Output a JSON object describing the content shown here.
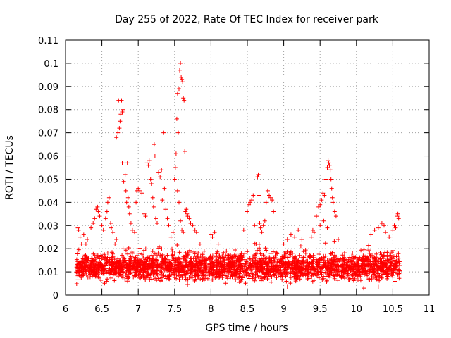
{
  "chart_data": {
    "type": "scatter",
    "title": "Day 255 of 2022, Rate Of TEC Index for receiver park",
    "xlabel": "GPS time / hours",
    "ylabel": "ROTI / TECUs",
    "xlim": [
      6,
      11
    ],
    "ylim": [
      0,
      0.11
    ],
    "x_ticks": [
      "6",
      "6.5",
      "7",
      "7.5",
      "8",
      "8.5",
      "9",
      "9.5",
      "10",
      "10.5",
      "11"
    ],
    "y_ticks": [
      "0",
      "0.01",
      "0.02",
      "0.03",
      "0.04",
      "0.05",
      "0.06",
      "0.07",
      "0.08",
      "0.09",
      "0.1",
      "0.11"
    ],
    "x_tick_values": [
      6,
      6.5,
      7,
      7.5,
      8,
      8.5,
      9,
      9.5,
      10,
      10.5,
      11
    ],
    "y_tick_values": [
      0,
      0.01,
      0.02,
      0.03,
      0.04,
      0.05,
      0.06,
      0.07,
      0.08,
      0.09,
      0.1,
      0.11
    ],
    "grid": true,
    "marker": "+",
    "marker_color": "#ff0000",
    "series": [
      {
        "name": "ROTI",
        "baseline_time_range": [
          6.15,
          10.6
        ],
        "baseline_value_range": [
          0.004,
          0.02
        ],
        "points": [
          [
            6.17,
            0.029
          ],
          [
            6.18,
            0.028
          ],
          [
            6.2,
            0.025
          ],
          [
            6.22,
            0.022
          ],
          [
            6.25,
            0.026
          ],
          [
            6.28,
            0.022
          ],
          [
            6.3,
            0.024
          ],
          [
            6.35,
            0.029
          ],
          [
            6.38,
            0.031
          ],
          [
            6.4,
            0.033
          ],
          [
            6.42,
            0.037
          ],
          [
            6.44,
            0.038
          ],
          [
            6.45,
            0.036
          ],
          [
            6.47,
            0.034
          ],
          [
            6.5,
            0.03
          ],
          [
            6.52,
            0.028
          ],
          [
            6.55,
            0.033
          ],
          [
            6.57,
            0.036
          ],
          [
            6.58,
            0.04
          ],
          [
            6.6,
            0.042
          ],
          [
            6.62,
            0.031
          ],
          [
            6.63,
            0.029
          ],
          [
            6.65,
            0.027
          ],
          [
            6.68,
            0.022
          ],
          [
            6.7,
            0.024
          ],
          [
            6.7,
            0.068
          ],
          [
            6.72,
            0.07
          ],
          [
            6.73,
            0.084
          ],
          [
            6.74,
            0.072
          ],
          [
            6.75,
            0.075
          ],
          [
            6.76,
            0.078
          ],
          [
            6.77,
            0.084
          ],
          [
            6.78,
            0.079
          ],
          [
            6.79,
            0.08
          ],
          [
            6.78,
            0.057
          ],
          [
            6.8,
            0.049
          ],
          [
            6.82,
            0.052
          ],
          [
            6.83,
            0.045
          ],
          [
            6.84,
            0.04
          ],
          [
            6.85,
            0.057
          ],
          [
            6.86,
            0.042
          ],
          [
            6.87,
            0.038
          ],
          [
            6.88,
            0.035
          ],
          [
            6.9,
            0.031
          ],
          [
            6.92,
            0.028
          ],
          [
            6.95,
            0.027
          ],
          [
            6.97,
            0.04
          ],
          [
            6.98,
            0.045
          ],
          [
            7.0,
            0.046
          ],
          [
            7.02,
            0.045
          ],
          [
            7.05,
            0.044
          ],
          [
            7.08,
            0.035
          ],
          [
            7.1,
            0.034
          ],
          [
            7.12,
            0.057
          ],
          [
            7.14,
            0.056
          ],
          [
            7.15,
            0.058
          ],
          [
            7.17,
            0.05
          ],
          [
            7.18,
            0.048
          ],
          [
            7.2,
            0.042
          ],
          [
            7.21,
            0.038
          ],
          [
            7.22,
            0.065
          ],
          [
            7.23,
            0.06
          ],
          [
            7.24,
            0.033
          ],
          [
            7.26,
            0.031
          ],
          [
            7.28,
            0.053
          ],
          [
            7.3,
            0.051
          ],
          [
            7.32,
            0.054
          ],
          [
            7.33,
            0.041
          ],
          [
            7.35,
            0.07
          ],
          [
            7.36,
            0.046
          ],
          [
            7.38,
            0.037
          ],
          [
            7.4,
            0.033
          ],
          [
            7.42,
            0.03
          ],
          [
            7.45,
            0.025
          ],
          [
            7.48,
            0.027
          ],
          [
            7.5,
            0.05
          ],
          [
            7.51,
            0.055
          ],
          [
            7.52,
            0.061
          ],
          [
            7.53,
            0.076
          ],
          [
            7.54,
            0.087
          ],
          [
            7.55,
            0.07
          ],
          [
            7.56,
            0.089
          ],
          [
            7.57,
            0.097
          ],
          [
            7.58,
            0.1
          ],
          [
            7.59,
            0.094
          ],
          [
            7.6,
            0.093
          ],
          [
            7.61,
            0.092
          ],
          [
            7.62,
            0.085
          ],
          [
            7.63,
            0.084
          ],
          [
            7.54,
            0.045
          ],
          [
            7.56,
            0.04
          ],
          [
            7.58,
            0.032
          ],
          [
            7.6,
            0.028
          ],
          [
            7.62,
            0.027
          ],
          [
            7.64,
            0.062
          ],
          [
            7.65,
            0.036
          ],
          [
            7.66,
            0.037
          ],
          [
            7.67,
            0.035
          ],
          [
            7.68,
            0.034
          ],
          [
            7.7,
            0.033
          ],
          [
            7.72,
            0.031
          ],
          [
            7.75,
            0.03
          ],
          [
            7.78,
            0.028
          ],
          [
            7.8,
            0.027
          ],
          [
            7.85,
            0.022
          ],
          [
            8.0,
            0.026
          ],
          [
            8.02,
            0.025
          ],
          [
            8.05,
            0.027
          ],
          [
            8.1,
            0.022
          ],
          [
            8.45,
            0.028
          ],
          [
            8.5,
            0.036
          ],
          [
            8.52,
            0.039
          ],
          [
            8.54,
            0.04
          ],
          [
            8.56,
            0.041
          ],
          [
            8.58,
            0.043
          ],
          [
            8.6,
            0.03
          ],
          [
            8.62,
            0.022
          ],
          [
            8.64,
            0.051
          ],
          [
            8.65,
            0.052
          ],
          [
            8.66,
            0.043
          ],
          [
            8.67,
            0.031
          ],
          [
            8.68,
            0.029
          ],
          [
            8.7,
            0.027
          ],
          [
            8.72,
            0.03
          ],
          [
            8.74,
            0.032
          ],
          [
            8.76,
            0.04
          ],
          [
            8.78,
            0.045
          ],
          [
            8.8,
            0.043
          ],
          [
            8.82,
            0.042
          ],
          [
            8.84,
            0.041
          ],
          [
            8.86,
            0.036
          ],
          [
            9.0,
            0.022
          ],
          [
            9.05,
            0.024
          ],
          [
            9.1,
            0.026
          ],
          [
            9.15,
            0.025
          ],
          [
            9.2,
            0.028
          ],
          [
            9.25,
            0.024
          ],
          [
            9.38,
            0.025
          ],
          [
            9.4,
            0.028
          ],
          [
            9.42,
            0.027
          ],
          [
            9.45,
            0.034
          ],
          [
            9.48,
            0.038
          ],
          [
            9.5,
            0.039
          ],
          [
            9.52,
            0.041
          ],
          [
            9.54,
            0.044
          ],
          [
            9.56,
            0.043
          ],
          [
            9.58,
            0.05
          ],
          [
            9.6,
            0.055
          ],
          [
            9.61,
            0.058
          ],
          [
            9.62,
            0.057
          ],
          [
            9.63,
            0.056
          ],
          [
            9.64,
            0.054
          ],
          [
            9.65,
            0.05
          ],
          [
            9.66,
            0.046
          ],
          [
            9.67,
            0.042
          ],
          [
            9.68,
            0.04
          ],
          [
            9.7,
            0.036
          ],
          [
            9.72,
            0.034
          ],
          [
            9.5,
            0.03
          ],
          [
            9.55,
            0.032
          ],
          [
            9.6,
            0.029
          ],
          [
            9.75,
            0.024
          ],
          [
            10.2,
            0.026
          ],
          [
            10.25,
            0.028
          ],
          [
            10.3,
            0.029
          ],
          [
            10.35,
            0.031
          ],
          [
            10.38,
            0.03
          ],
          [
            10.4,
            0.027
          ],
          [
            10.45,
            0.025
          ],
          [
            10.5,
            0.028
          ],
          [
            10.52,
            0.03
          ],
          [
            10.54,
            0.029
          ],
          [
            10.56,
            0.034
          ],
          [
            10.57,
            0.035
          ],
          [
            10.58,
            0.033
          ],
          [
            10.3,
            0.0035
          ],
          [
            9.05,
            0.0035
          ],
          [
            10.1,
            0.003
          ]
        ]
      }
    ]
  }
}
